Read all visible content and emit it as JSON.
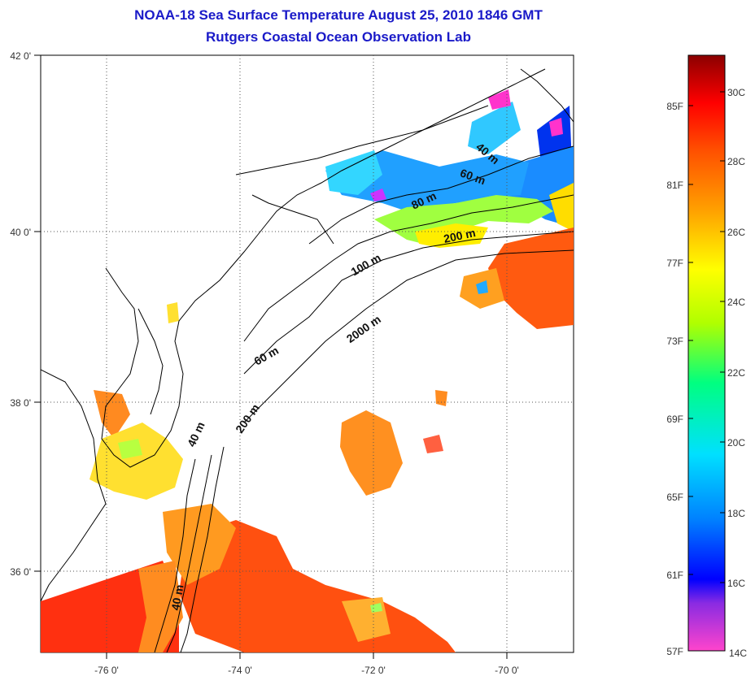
{
  "title": {
    "line1": "NOAA-18 Sea Surface Temperature August 25, 2010 1846 GMT",
    "line2": "Rutgers Coastal Ocean Observation Lab"
  },
  "map": {
    "lon_ticks": [
      "-76 0'",
      "-74 0'",
      "-72 0'",
      "-70 0'"
    ],
    "lat_ticks": [
      "42 0'",
      "40 0'",
      "38 0'",
      "36 0'"
    ],
    "lon_range": [
      -77.0,
      -69.0
    ],
    "lat_range": [
      35.0,
      42.0
    ],
    "gridlines": "dotted",
    "isobath_labels": [
      "40 m",
      "60 m",
      "80 m",
      "200 m",
      "100 m",
      "2000 m",
      "60 m",
      "200 m",
      "40 m",
      "40 m"
    ]
  },
  "colorbar": {
    "fahrenheit": [
      "85F",
      "81F",
      "77F",
      "73F",
      "69F",
      "65F",
      "61F",
      "57F"
    ],
    "celsius": [
      "30C",
      "28C",
      "26C",
      "24C",
      "22C",
      "20C",
      "18C",
      "16C",
      "14C"
    ],
    "colors": [
      "#ff44cc",
      "#8a2be2",
      "#0000ff",
      "#0080ff",
      "#00e0ff",
      "#00ff80",
      "#b0ff00",
      "#ffff00",
      "#ffa000",
      "#ff5000",
      "#ff0000",
      "#8b0000"
    ]
  }
}
